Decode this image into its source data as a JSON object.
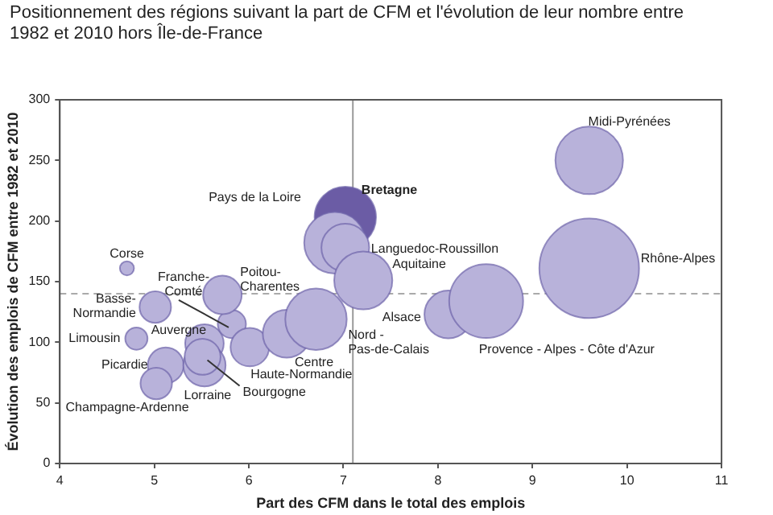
{
  "chart_data": {
    "type": "bubble",
    "title": "Positionnement des régions suivant la part de CFM et l'évolution de leur nombre entre 1982 et 2010 hors Île-de-France",
    "xlabel": "Part des CFM dans le total des emplois",
    "ylabel": "Évolution des emplois de CFM entre 1982 et 2010",
    "x": [
      4.71,
      5.01,
      4.81,
      5.12,
      5.02,
      5.53,
      5.53,
      5.51,
      5.82,
      5.72,
      6.01,
      6.4,
      6.71,
      7.02,
      6.91,
      7.02,
      7.21,
      8.11,
      8.51,
      9.6,
      9.6
    ],
    "values": [
      161,
      129,
      103,
      81,
      66,
      99,
      81,
      88,
      115,
      139,
      96,
      107,
      119,
      203,
      182,
      178,
      151,
      123,
      134,
      161,
      250
    ],
    "sizes": [
      0.02,
      0.1,
      0.05,
      0.13,
      0.1,
      0.15,
      0.18,
      0.13,
      0.08,
      0.15,
      0.15,
      0.23,
      0.38,
      0.38,
      0.38,
      0.23,
      0.34,
      0.23,
      0.55,
      1,
      0.46
    ],
    "colors": [
      "#b8b2da",
      "#b8b2da",
      "#b8b2da",
      "#b8b2da",
      "#b8b2da",
      "#b8b2da",
      "#b8b2da",
      "#b8b2da",
      "#b8b2da",
      "#b8b2da",
      "#b8b2da",
      "#b8b2da",
      "#b8b2da",
      "#6b5ca5",
      "#b8b2da",
      "#b8b2da",
      "#b8b2da",
      "#b8b2da",
      "#b8b2da",
      "#b8b2da",
      "#b8b2da"
    ],
    "xlim": [
      4,
      11
    ],
    "xticks": [
      4,
      5,
      6,
      7,
      8,
      9,
      10,
      11
    ],
    "ylim": [
      0,
      300
    ],
    "yticks": [
      0,
      50,
      100,
      150,
      200,
      250,
      300
    ],
    "ref_lines": [
      {
        "axis": "x",
        "value": 7.1,
        "color": "#999999",
        "line_style": "solid"
      },
      {
        "axis": "y",
        "value": 140,
        "color": "#aaaaaa",
        "line_style": "dashed"
      }
    ],
    "annotations": [
      {
        "text": "Corse",
        "x": 4.71,
        "y": 161
      },
      {
        "text": "Basse-\nNormandie",
        "x": 5.01,
        "y": 129
      },
      {
        "text": "Limousin",
        "x": 4.81,
        "y": 103
      },
      {
        "text": "Picardie",
        "x": 5.12,
        "y": 81
      },
      {
        "text": "Champagne-Ardenne",
        "x": 5.02,
        "y": 66
      },
      {
        "text": "Auvergne",
        "x": 5.53,
        "y": 99
      },
      {
        "text": "Lorraine",
        "x": 5.53,
        "y": 81
      },
      {
        "text": "Bourgogne",
        "x": 5.51,
        "y": 88
      },
      {
        "text": "Franche-\nComté",
        "x": 5.82,
        "y": 115
      },
      {
        "text": "Poitou-\nCharentes",
        "x": 5.72,
        "y": 139
      },
      {
        "text": "Haute-Normandie",
        "x": 6.01,
        "y": 96
      },
      {
        "text": "Centre",
        "x": 6.4,
        "y": 107
      },
      {
        "text": "Nord -\nPas-de-Calais",
        "x": 6.71,
        "y": 119
      },
      {
        "text": "Bretagne",
        "x": 7.02,
        "y": 203
      },
      "Pays de la Loire",
      {
        "text": "Languedoc-Roussillon",
        "x": 7.02,
        "y": 178
      },
      {
        "text": "Aquitaine",
        "x": 7.21,
        "y": 151
      },
      {
        "text": "Alsace",
        "x": 8.11,
        "y": 123
      },
      "Provence - Alpes - Côte d'Azur",
      "Rhône-Alpes",
      {
        "text": "Midi-Pyrénées",
        "x": 9.6,
        "y": 250
      }
    ]
  }
}
